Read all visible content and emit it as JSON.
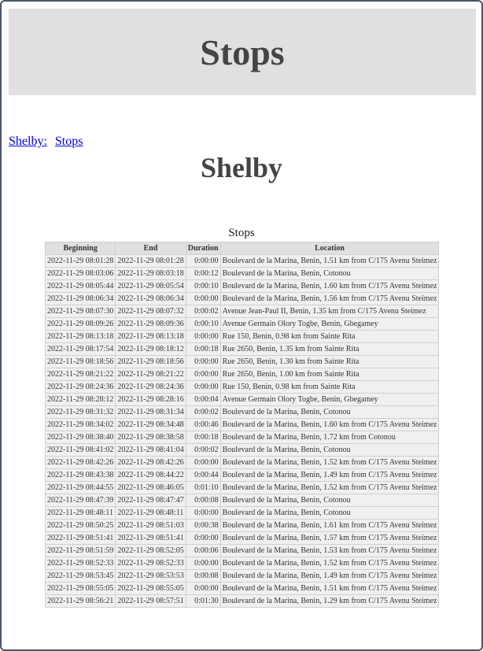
{
  "header": {
    "title": "Stops"
  },
  "breadcrumb": [
    {
      "label": "Shelby:"
    },
    {
      "label": "Stops"
    }
  ],
  "page_title": "Shelby",
  "table": {
    "caption": "Stops",
    "columns": [
      "Beginning",
      "End",
      "Duration",
      "Location"
    ],
    "rows": [
      [
        "2022-11-29 08:01:28",
        "2022-11-29 08:01:28",
        "0:00:00",
        "Boulevard de la Marina, Benin, 1.51 km from C/175 Avenu Steimez"
      ],
      [
        "2022-11-29 08:03:06",
        "2022-11-29 08:03:18",
        "0:00:12",
        "Boulevard de la Marina, Benin, Cotonou"
      ],
      [
        "2022-11-29 08:05:44",
        "2022-11-29 08:05:54",
        "0:00:10",
        "Boulevard de la Marina, Benin, 1.60 km from C/175 Avenu Steimez"
      ],
      [
        "2022-11-29 08:06:34",
        "2022-11-29 08:06:34",
        "0:00:00",
        "Boulevard de la Marina, Benin, 1.56 km from C/175 Avenu Steimez"
      ],
      [
        "2022-11-29 08:07:30",
        "2022-11-29 08:07:32",
        "0:00:02",
        "Avenue Jean-Paul II, Benin, 1.35 km from C/175 Avenu Steimez"
      ],
      [
        "2022-11-29 08:09:26",
        "2022-11-29 08:09:36",
        "0:00:10",
        "Avenue Germain Olory Togbe, Benin, Gbegamey"
      ],
      [
        "2022-11-29 08:13:18",
        "2022-11-29 08:13:18",
        "0:00:00",
        "Rue 150, Benin, 0.98 km from Sainte Rita"
      ],
      [
        "2022-11-29 08:17:54",
        "2022-11-29 08:18:12",
        "0:00:18",
        "Rue 2650, Benin, 1.35 km from Sainte Rita"
      ],
      [
        "2022-11-29 08:18:56",
        "2022-11-29 08:18:56",
        "0:00:00",
        "Rue 2650, Benin, 1.30 km from Sainte Rita"
      ],
      [
        "2022-11-29 08:21:22",
        "2022-11-29 08:21:22",
        "0:00:00",
        "Rue 2650, Benin, 1.00 km from Sainte Rita"
      ],
      [
        "2022-11-29 08:24:36",
        "2022-11-29 08:24:36",
        "0:00:00",
        "Rue 150, Benin, 0.98 km from Sainte Rita"
      ],
      [
        "2022-11-29 08:28:12",
        "2022-11-29 08:28:16",
        "0:00:04",
        "Avenue Germain Olory Togbe, Benin, Gbegamey"
      ],
      [
        "2022-11-29 08:31:32",
        "2022-11-29 08:31:34",
        "0:00:02",
        "Boulevard de la Marina, Benin, Cotonou"
      ],
      [
        "2022-11-29 08:34:02",
        "2022-11-29 08:34:48",
        "0:00:46",
        "Boulevard de la Marina, Benin, 1.60 km from C/175 Avenu Steimez"
      ],
      [
        "2022-11-29 08:38:40",
        "2022-11-29 08:38:58",
        "0:00:18",
        "Boulevard de la Marina, Benin, 1.72 km from Cotonou"
      ],
      [
        "2022-11-29 08:41:02",
        "2022-11-29 08:41:04",
        "0:00:02",
        "Boulevard de la Marina, Benin, Cotonou"
      ],
      [
        "2022-11-29 08:42:26",
        "2022-11-29 08:42:26",
        "0:00:00",
        "Boulevard de la Marina, Benin, 1.52 km from C/175 Avenu Steimez"
      ],
      [
        "2022-11-29 08:43:38",
        "2022-11-29 08:44:22",
        "0:00:44",
        "Boulevard de la Marina, Benin, 1.49 km from C/175 Avenu Steimez"
      ],
      [
        "2022-11-29 08:44:55",
        "2022-11-29 08:46:05",
        "0:01:10",
        "Boulevard de la Marina, Benin, 1.52 km from C/175 Avenu Steimez"
      ],
      [
        "2022-11-29 08:47:39",
        "2022-11-29 08:47:47",
        "0:00:08",
        "Boulevard de la Marina, Benin, Cotonou"
      ],
      [
        "2022-11-29 08:48:11",
        "2022-11-29 08:48:11",
        "0:00:00",
        "Boulevard de la Marina, Benin, Cotonou"
      ],
      [
        "2022-11-29 08:50:25",
        "2022-11-29 08:51:03",
        "0:00:38",
        "Boulevard de la Marina, Benin, 1.61 km from C/175 Avenu Steimez"
      ],
      [
        "2022-11-29 08:51:41",
        "2022-11-29 08:51:41",
        "0:00:00",
        "Boulevard de la Marina, Benin, 1.57 km from C/175 Avenu Steimez"
      ],
      [
        "2022-11-29 08:51:59",
        "2022-11-29 08:52:05",
        "0:00:06",
        "Boulevard de la Marina, Benin, 1.53 km from C/175 Avenu Steimez"
      ],
      [
        "2022-11-29 08:52:33",
        "2022-11-29 08:52:33",
        "0:00:00",
        "Boulevard de la Marina, Benin, 1.52 km from C/175 Avenu Steimez"
      ],
      [
        "2022-11-29 08:53:45",
        "2022-11-29 08:53:53",
        "0:00:08",
        "Boulevard de la Marina, Benin, 1.49 km from C/175 Avenu Steimez"
      ],
      [
        "2022-11-29 08:55:05",
        "2022-11-29 08:55:05",
        "0:00:00",
        "Boulevard de la Marina, Benin, 1.51 km from C/175 Avenu Steimez"
      ],
      [
        "2022-11-29 08:56:21",
        "2022-11-29 08:57:51",
        "0:01:30",
        "Boulevard de la Marina, Benin, 1.29 km from C/175 Avenu Steimez"
      ]
    ]
  }
}
